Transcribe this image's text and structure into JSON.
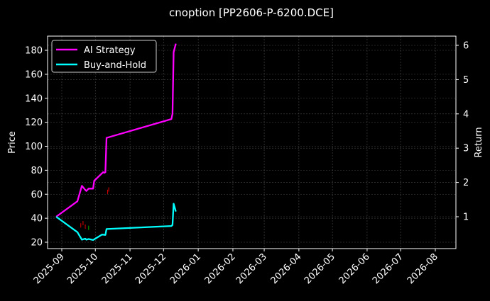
{
  "chart_data": {
    "type": "line",
    "title": "cnoption [PP2606-P-6200.DCE]",
    "xlabel": "",
    "ylabel": "Price",
    "ylabel_right": "Return",
    "ylim": [
      15,
      192
    ],
    "ylim_right": [
      0.1,
      6.25
    ],
    "yticks": [
      20,
      40,
      60,
      80,
      100,
      120,
      140,
      160,
      180
    ],
    "yticks_right": [
      1,
      2,
      3,
      4,
      5,
      6
    ],
    "xticks": [
      "2025-09",
      "2025-10",
      "2025-11",
      "2025-12",
      "2026-01",
      "2026-02",
      "2026-03",
      "2026-04",
      "2026-05",
      "2026-06",
      "2026-07",
      "2026-08"
    ],
    "grid": true,
    "legend_position": "upper left",
    "colors": {
      "ai_strategy": "#ff00ff",
      "buy_and_hold": "#00ffff",
      "background": "#000000",
      "axes": "#ffffff",
      "grid": "#555555"
    },
    "series": [
      {
        "name": "AI Strategy",
        "axis": "right",
        "color": "#ff00ff",
        "x": [
          "2025-08-27",
          "2025-09-15",
          "2025-09-19",
          "2025-09-22",
          "2025-09-23",
          "2025-09-25",
          "2025-09-29",
          "2025-09-30",
          "2025-10-08",
          "2025-10-09",
          "2025-10-10",
          "2025-10-11",
          "2025-12-08",
          "2025-12-09",
          "2025-12-10",
          "2025-12-12"
        ],
        "values": [
          1.0,
          1.45,
          1.9,
          1.78,
          1.75,
          1.82,
          1.82,
          2.05,
          2.3,
          2.28,
          2.3,
          3.3,
          3.85,
          4.0,
          5.8,
          6.05
        ]
      },
      {
        "name": "Buy-and-Hold",
        "axis": "right",
        "color": "#00ffff",
        "x": [
          "2025-08-27",
          "2025-09-15",
          "2025-09-19",
          "2025-09-22",
          "2025-09-23",
          "2025-09-25",
          "2025-09-29",
          "2025-10-07",
          "2025-10-10",
          "2025-10-11",
          "2025-12-08",
          "2025-12-09",
          "2025-12-10",
          "2025-12-12"
        ],
        "values": [
          1.0,
          0.55,
          0.33,
          0.36,
          0.33,
          0.35,
          0.32,
          0.48,
          0.47,
          0.64,
          0.73,
          0.76,
          1.38,
          1.15
        ]
      },
      {
        "name": "Price (candlesticks)",
        "axis": "left",
        "color": "#ff0000",
        "x": [
          "2025-09-18",
          "2025-09-20",
          "2025-09-22",
          "2025-09-25",
          "2025-10-12",
          "2025-10-13"
        ],
        "values": [
          34,
          36,
          33,
          32,
          62,
          64
        ]
      }
    ]
  }
}
